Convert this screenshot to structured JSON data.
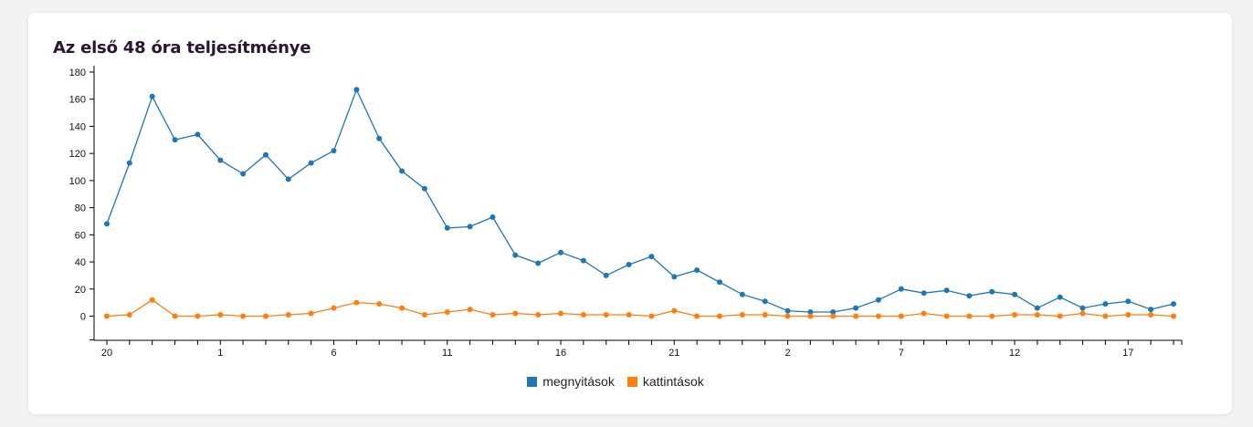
{
  "colors": {
    "opens": "#1f77b4",
    "clicks": "#ff7f0e"
  },
  "chart_data": {
    "type": "line",
    "title": "Az első 48 óra teljesítménye",
    "xlabel": "",
    "ylabel": "",
    "ylim": [
      -20,
      180
    ],
    "yticks": [
      0,
      20,
      40,
      60,
      80,
      100,
      120,
      140,
      160,
      180
    ],
    "x": [
      "20",
      "21",
      "22",
      "23",
      "0",
      "1",
      "2",
      "3",
      "4",
      "5",
      "6",
      "7",
      "8",
      "9",
      "10",
      "11",
      "12",
      "13",
      "14",
      "15",
      "16",
      "17",
      "18",
      "19",
      "20",
      "21",
      "22",
      "23",
      "0",
      "1",
      "2",
      "3",
      "4",
      "5",
      "6",
      "7",
      "8",
      "9",
      "10",
      "11",
      "12",
      "13",
      "14",
      "15",
      "16",
      "17",
      "18",
      "19"
    ],
    "xtick_labels": [
      "20",
      "1",
      "6",
      "11",
      "16",
      "21",
      "2",
      "7",
      "12",
      "17"
    ],
    "series": [
      {
        "name": "megnyitások",
        "values": [
          68,
          113,
          162,
          130,
          134,
          115,
          105,
          119,
          101,
          113,
          122,
          167,
          131,
          107,
          94,
          65,
          66,
          73,
          45,
          39,
          47,
          41,
          30,
          38,
          44,
          29,
          34,
          25,
          16,
          11,
          4,
          3,
          3,
          6,
          12,
          20,
          17,
          19,
          15,
          18,
          16,
          6,
          14,
          6,
          9,
          11,
          5,
          9
        ]
      },
      {
        "name": "kattintások",
        "values": [
          0,
          1,
          12,
          0,
          0,
          1,
          0,
          0,
          1,
          2,
          6,
          10,
          9,
          6,
          1,
          3,
          5,
          1,
          2,
          1,
          2,
          1,
          1,
          1,
          0,
          4,
          0,
          0,
          1,
          1,
          0,
          0,
          0,
          0,
          0,
          0,
          2,
          0,
          0,
          0,
          1,
          1,
          0,
          2,
          0,
          1,
          1,
          0
        ]
      }
    ],
    "legend": "bottom-center",
    "grid": false
  }
}
